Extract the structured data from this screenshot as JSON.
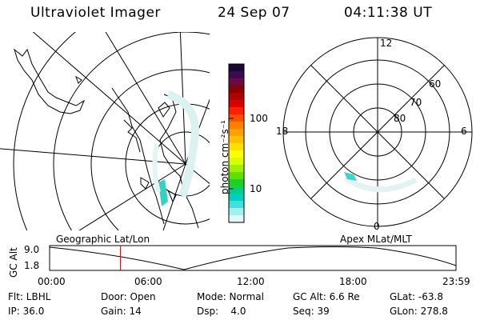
{
  "header": {
    "instrument": "Ultraviolet Imager",
    "date": "24 Sep 07",
    "time": "04:11:38 UT"
  },
  "colorbar": {
    "unit_label": "photon cm⁻²s⁻¹",
    "ticks": [
      "100",
      "10"
    ],
    "colors": [
      "#1a0833",
      "#3a0a55",
      "#6a0a40",
      "#8b0000",
      "#b30000",
      "#d90000",
      "#ff2000",
      "#ff5000",
      "#ff8000",
      "#ffa000",
      "#ffc000",
      "#ffe000",
      "#ffff00",
      "#d8ff00",
      "#a0f000",
      "#60e000",
      "#20d020",
      "#00d080",
      "#00d0c0",
      "#40e0e0",
      "#a0f0f0",
      "#e0f8f8"
    ]
  },
  "polar_plot": {
    "mlt_labels": {
      "top": "12",
      "left": "18",
      "right": "6",
      "bottom": "0"
    },
    "lat_labels": [
      "60",
      "70",
      "80"
    ]
  },
  "timeline": {
    "left_label": "Geographic Lat/Lon",
    "right_label": "Apex MLat/MLT",
    "y_axis_label": "GC Alt",
    "y_ticks": [
      "9.0",
      "1.8"
    ],
    "x_ticks": [
      "00:00",
      "06:00",
      "12:00",
      "18:00",
      "23:59"
    ],
    "marker_time": "04:11",
    "marker_color": "#cc0000"
  },
  "status": {
    "flt": "Flt: LBHL",
    "ip": "IP: 36.0",
    "door": "Door: Open",
    "gain": "Gain: 14",
    "mode": "Mode: Normal",
    "dsp": "Dsp:    4.0",
    "gc_alt": "GC Alt: 6.6 Re",
    "seq": "Seq: 39",
    "glat": "GLat: -63.8",
    "glon": "GLon: 278.8"
  }
}
